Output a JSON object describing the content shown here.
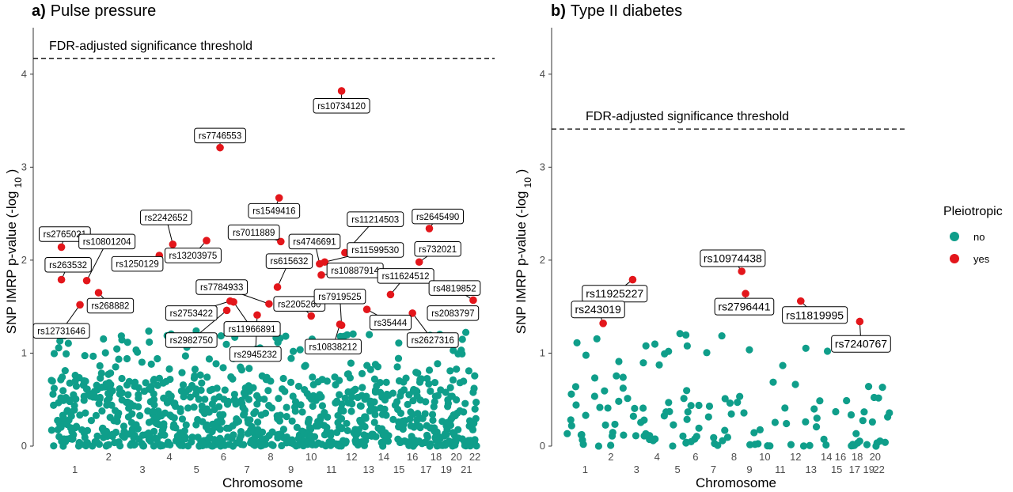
{
  "colors": {
    "no": "#0f9e8a",
    "yes": "#e3161b",
    "axis": "#333333",
    "tick_text": "#4d4d4d"
  },
  "legend": {
    "title": "Pleiotropic",
    "items": [
      {
        "key": "no",
        "label": "no"
      },
      {
        "key": "yes",
        "label": "yes"
      }
    ]
  },
  "chart_data": [
    {
      "type": "scatter",
      "panel_letter": "a)",
      "title": "Pulse pressure",
      "xlabel": "Chromosome",
      "ylabel": "SNP IMRP p-value (-log",
      "ylabel_sub": "10",
      "ylabel_suffix": " )",
      "ylim": [
        0,
        4.5
      ],
      "yticks": [
        0,
        1,
        2,
        3,
        4
      ],
      "threshold": {
        "value": 4.17,
        "label": "FDR-adjusted significance threshold"
      },
      "chromosome_ticks": [
        {
          "label": "1",
          "x": 1.0,
          "row": 2
        },
        {
          "label": "2",
          "x": 2.0,
          "row": 1
        },
        {
          "label": "3",
          "x": 3.0,
          "row": 2
        },
        {
          "label": "4",
          "x": 3.8,
          "row": 1
        },
        {
          "label": "5",
          "x": 4.6,
          "row": 2
        },
        {
          "label": "6",
          "x": 5.4,
          "row": 1
        },
        {
          "label": "7",
          "x": 6.1,
          "row": 2
        },
        {
          "label": "8",
          "x": 6.8,
          "row": 1
        },
        {
          "label": "9",
          "x": 7.4,
          "row": 2
        },
        {
          "label": "10",
          "x": 8.0,
          "row": 1
        },
        {
          "label": "11",
          "x": 8.6,
          "row": 2
        },
        {
          "label": "12",
          "x": 9.2,
          "row": 1
        },
        {
          "label": "13",
          "x": 9.7,
          "row": 2
        },
        {
          "label": "14",
          "x": 10.15,
          "row": 1
        },
        {
          "label": "15",
          "x": 10.6,
          "row": 2
        },
        {
          "label": "16",
          "x": 11.0,
          "row": 1
        },
        {
          "label": "17",
          "x": 11.4,
          "row": 2
        },
        {
          "label": "18",
          "x": 11.7,
          "row": 1
        },
        {
          "label": "19",
          "x": 12.0,
          "row": 2
        },
        {
          "label": "20",
          "x": 12.3,
          "row": 1
        },
        {
          "label": "21",
          "x": 12.6,
          "row": 2
        },
        {
          "label": "22",
          "x": 12.85,
          "row": 1
        }
      ],
      "xlim": [
        0,
        13.2
      ],
      "background_points": {
        "count": 900,
        "seed": 7,
        "bulk_max": 0.75,
        "tail_fraction": 0.18,
        "tail_max": 1.24
      },
      "labeled_snps": [
        {
          "id": "rs10734120",
          "x": 8.9,
          "y": 3.82,
          "pleiotropic": "yes",
          "lx": 8.9,
          "ly": 3.66
        },
        {
          "id": "rs7746553",
          "x": 5.3,
          "y": 3.21,
          "pleiotropic": "yes",
          "lx": 5.3,
          "ly": 3.34
        },
        {
          "id": "rs1549416",
          "x": 7.05,
          "y": 2.67,
          "pleiotropic": "yes",
          "lx": 6.9,
          "ly": 2.53
        },
        {
          "id": "rs2645490",
          "x": 11.5,
          "y": 2.34,
          "pleiotropic": "yes",
          "lx": 11.75,
          "ly": 2.47
        },
        {
          "id": "rs2765021",
          "x": 0.6,
          "y": 2.14,
          "pleiotropic": "yes",
          "lx": 0.7,
          "ly": 2.28
        },
        {
          "id": "rs2242652",
          "x": 3.9,
          "y": 2.17,
          "pleiotropic": "yes",
          "lx": 3.7,
          "ly": 2.46
        },
        {
          "id": "rs7011889",
          "x": 7.1,
          "y": 2.2,
          "pleiotropic": "yes",
          "lx": 6.3,
          "ly": 2.3
        },
        {
          "id": "rs11214503",
          "x": 9.0,
          "y": 2.08,
          "pleiotropic": "yes",
          "lx": 9.9,
          "ly": 2.44
        },
        {
          "id": "rs10801204",
          "x": 1.35,
          "y": 1.78,
          "pleiotropic": "yes",
          "lx": 1.95,
          "ly": 2.2
        },
        {
          "id": "rs13203975",
          "x": 4.9,
          "y": 2.21,
          "pleiotropic": "yes",
          "lx": 4.5,
          "ly": 2.05
        },
        {
          "id": "rs4746691",
          "x": 8.25,
          "y": 1.96,
          "pleiotropic": "yes",
          "lx": 8.1,
          "ly": 2.2
        },
        {
          "id": "rs11599530",
          "x": 8.4,
          "y": 1.98,
          "pleiotropic": "yes",
          "lx": 9.9,
          "ly": 2.11
        },
        {
          "id": "rs732021",
          "x": 11.2,
          "y": 1.98,
          "pleiotropic": "yes",
          "lx": 11.75,
          "ly": 2.12
        },
        {
          "id": "rs1250129",
          "x": 3.5,
          "y": 2.05,
          "pleiotropic": "yes",
          "lx": 2.85,
          "ly": 1.96
        },
        {
          "id": "rs263532",
          "x": 0.6,
          "y": 1.79,
          "pleiotropic": "yes",
          "lx": 0.8,
          "ly": 1.95
        },
        {
          "id": "rs615632",
          "x": 7.0,
          "y": 1.71,
          "pleiotropic": "yes",
          "lx": 7.35,
          "ly": 1.99
        },
        {
          "id": "rs10887914",
          "x": 8.3,
          "y": 1.84,
          "pleiotropic": "yes",
          "lx": 9.3,
          "ly": 1.89
        },
        {
          "id": "rs11624512",
          "x": 10.35,
          "y": 1.63,
          "pleiotropic": "yes",
          "lx": 10.8,
          "ly": 1.83
        },
        {
          "id": "rs7784933",
          "x": 6.75,
          "y": 1.53,
          "pleiotropic": "yes",
          "lx": 5.35,
          "ly": 1.71
        },
        {
          "id": "rs4819852",
          "x": 12.8,
          "y": 1.57,
          "pleiotropic": "yes",
          "lx": 12.25,
          "ly": 1.7
        },
        {
          "id": "rs268882",
          "x": 1.7,
          "y": 1.65,
          "pleiotropic": "yes",
          "lx": 2.05,
          "ly": 1.51
        },
        {
          "id": "rs2205260",
          "x": 8.0,
          "y": 1.4,
          "pleiotropic": "yes",
          "lx": 7.65,
          "ly": 1.53
        },
        {
          "id": "rs7919525",
          "x": 8.9,
          "y": 1.3,
          "pleiotropic": "yes",
          "lx": 8.85,
          "ly": 1.61
        },
        {
          "id": "rs2753422",
          "x": 5.6,
          "y": 1.56,
          "pleiotropic": "yes",
          "lx": 4.45,
          "ly": 1.43
        },
        {
          "id": "rs12731646",
          "x": 1.15,
          "y": 1.52,
          "pleiotropic": "yes",
          "lx": 0.6,
          "ly": 1.24
        },
        {
          "id": "rs11966891",
          "x": 5.7,
          "y": 1.55,
          "pleiotropic": "yes",
          "lx": 6.25,
          "ly": 1.26
        },
        {
          "id": "rs2083797",
          "x": 11.6,
          "y": 1.41,
          "pleiotropic": "yes",
          "lx": 12.2,
          "ly": 1.43
        },
        {
          "id": "rs2982750",
          "x": 5.5,
          "y": 1.46,
          "pleiotropic": "yes",
          "lx": 4.45,
          "ly": 1.14
        },
        {
          "id": "rs35444",
          "x": 9.65,
          "y": 1.47,
          "pleiotropic": "yes",
          "lx": 10.35,
          "ly": 1.33
        },
        {
          "id": "rs2627316",
          "x": 11.0,
          "y": 1.43,
          "pleiotropic": "yes",
          "lx": 11.6,
          "ly": 1.14
        },
        {
          "id": "rs2945232",
          "x": 6.4,
          "y": 1.41,
          "pleiotropic": "yes",
          "lx": 6.35,
          "ly": 0.99
        },
        {
          "id": "rs10838212",
          "x": 8.85,
          "y": 1.31,
          "pleiotropic": "yes",
          "lx": 8.65,
          "ly": 1.07
        }
      ]
    },
    {
      "type": "scatter",
      "panel_letter": "b)",
      "title": "Type II diabetes",
      "xlabel": "Chromosome",
      "ylabel": "SNP IMRP p-value (-log",
      "ylabel_sub": "10",
      "ylabel_suffix": " )",
      "ylim": [
        0,
        4.5
      ],
      "yticks": [
        0,
        1,
        2,
        3,
        4
      ],
      "threshold": {
        "value": 3.41,
        "label": "FDR-adjusted significance threshold"
      },
      "chromosome_ticks": [
        {
          "label": "1",
          "x": 1.0,
          "row": 2
        },
        {
          "label": "2",
          "x": 2.0,
          "row": 1
        },
        {
          "label": "3",
          "x": 3.0,
          "row": 2
        },
        {
          "label": "4",
          "x": 3.8,
          "row": 1
        },
        {
          "label": "5",
          "x": 4.6,
          "row": 2
        },
        {
          "label": "6",
          "x": 5.3,
          "row": 1
        },
        {
          "label": "7",
          "x": 6.0,
          "row": 2
        },
        {
          "label": "8",
          "x": 6.8,
          "row": 1
        },
        {
          "label": "9",
          "x": 7.4,
          "row": 2
        },
        {
          "label": "10",
          "x": 8.0,
          "row": 1
        },
        {
          "label": "11",
          "x": 8.6,
          "row": 2
        },
        {
          "label": "12",
          "x": 9.2,
          "row": 1
        },
        {
          "label": "13",
          "x": 9.8,
          "row": 2
        },
        {
          "label": "14",
          "x": 10.4,
          "row": 1
        },
        {
          "label": "15",
          "x": 10.8,
          "row": 2
        },
        {
          "label": "16",
          "x": 10.95,
          "row": 1
        },
        {
          "label": "17",
          "x": 11.5,
          "row": 2
        },
        {
          "label": "18",
          "x": 11.6,
          "row": 1
        },
        {
          "label": "19",
          "x": 12.05,
          "row": 2
        },
        {
          "label": "20",
          "x": 12.3,
          "row": 1
        },
        {
          "label": "22",
          "x": 12.45,
          "row": 2
        }
      ],
      "xlim": [
        0,
        13.2
      ],
      "background_points": {
        "count": 140,
        "seed": 19,
        "bulk_max": 0.65,
        "tail_fraction": 0.25,
        "tail_max": 1.22
      },
      "labeled_snps": [
        {
          "id": "rs10974438",
          "x": 7.1,
          "y": 1.88,
          "pleiotropic": "yes",
          "lx": 6.75,
          "ly": 2.02
        },
        {
          "id": "rs11925227",
          "x": 2.85,
          "y": 1.79,
          "pleiotropic": "yes",
          "lx": 2.15,
          "ly": 1.64
        },
        {
          "id": "rs2796441",
          "x": 7.25,
          "y": 1.64,
          "pleiotropic": "yes",
          "lx": 7.2,
          "ly": 1.5
        },
        {
          "id": "rs243019",
          "x": 1.7,
          "y": 1.32,
          "pleiotropic": "yes",
          "lx": 1.5,
          "ly": 1.47
        },
        {
          "id": "rs11819995",
          "x": 9.4,
          "y": 1.56,
          "pleiotropic": "yes",
          "lx": 9.95,
          "ly": 1.41
        },
        {
          "id": "rs7240767",
          "x": 11.7,
          "y": 1.34,
          "pleiotropic": "yes",
          "lx": 11.75,
          "ly": 1.1
        }
      ]
    }
  ]
}
